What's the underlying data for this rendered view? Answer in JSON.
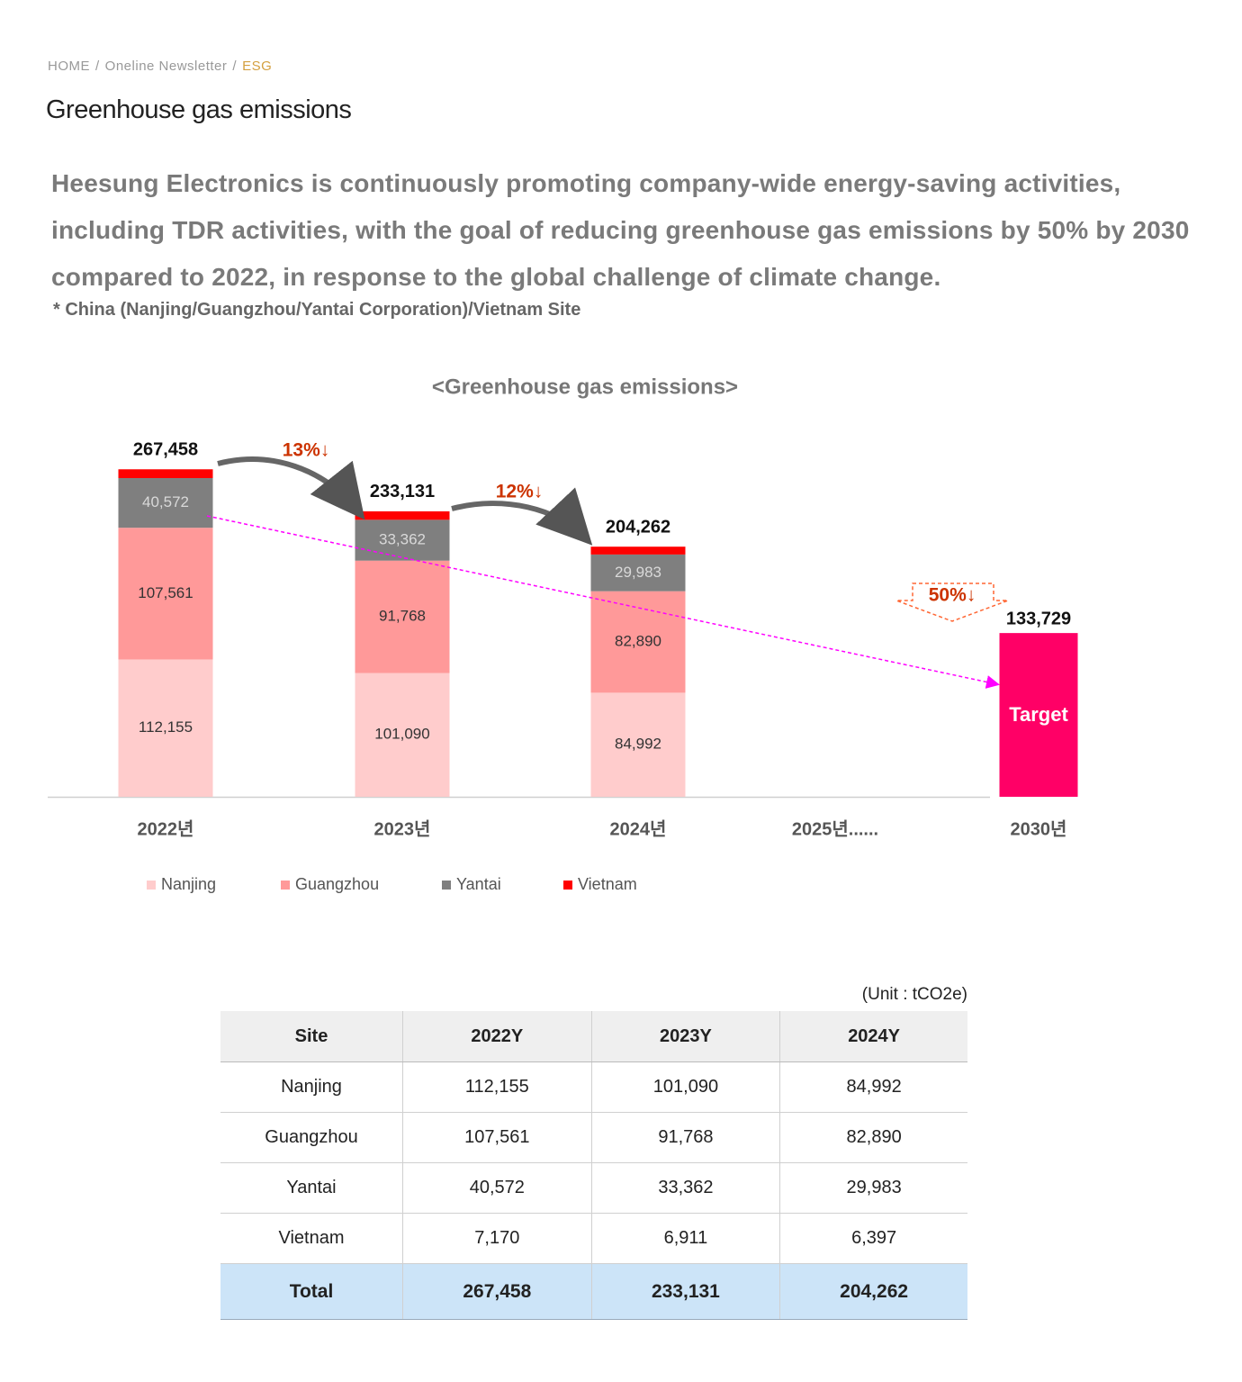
{
  "breadcrumb": {
    "items": [
      "HOME",
      "Oneline Newsletter",
      "ESG"
    ],
    "separator": "/"
  },
  "header": {
    "title": "Greenhouse gas emissions"
  },
  "intro": {
    "text": "Heesung Electronics is continuously promoting company-wide energy-saving activities, including TDR activities, with the goal of reducing greenhouse gas emissions by 50% by 2030 compared to 2022, in response to the global challenge of climate change.",
    "note": "* China (Nanjing/Guangzhou/Yantai Corporation)/Vietnam Site"
  },
  "chart_data": {
    "type": "stacked-bar",
    "title": "<Greenhouse gas emissions>",
    "categories": [
      "2022년",
      "2023년",
      "2024년",
      "2025년......",
      "2030년"
    ],
    "ylim": [
      0,
      300000
    ],
    "series": [
      {
        "name": "Nanjing",
        "color": "#ffcccc",
        "label_color": "#333333",
        "values": [
          112155,
          101090,
          84992,
          null,
          null
        ],
        "value_labels": [
          "112,155",
          "101,090",
          "84,992",
          null,
          null
        ]
      },
      {
        "name": "Guangzhou",
        "color": "#ff9999",
        "label_color": "#333333",
        "values": [
          107561,
          91768,
          82890,
          null,
          null
        ],
        "value_labels": [
          "107,561",
          "91,768",
          "82,890",
          null,
          null
        ]
      },
      {
        "name": "Yantai",
        "color": "#7f7f7f",
        "label_color": "#d9d9d9",
        "values": [
          40572,
          33362,
          29983,
          null,
          null
        ],
        "value_labels": [
          "40,572",
          "33,362",
          "29,983",
          null,
          null
        ]
      },
      {
        "name": "Vietnam",
        "color": "#ff0000",
        "values": [
          7170,
          6911,
          6397,
          null,
          null
        ]
      }
    ],
    "totals": [
      267458,
      233131,
      204262,
      null,
      null
    ],
    "total_labels": [
      "267,458",
      "233,131",
      "204,262",
      null,
      null
    ],
    "target": {
      "label": "Target",
      "value": 133729,
      "value_label": "133,729",
      "color": "#ff0066"
    },
    "annotations": [
      "13%↓",
      "12%↓",
      "50%↓"
    ],
    "annotation_color": "#cc3300"
  },
  "table": {
    "unit": "(Unit : tCO2e)",
    "header": [
      "Site",
      "2022Y",
      "2023Y",
      "2024Y"
    ],
    "rows": [
      [
        "Nanjing",
        "112,155",
        "101,090",
        "84,992"
      ],
      [
        "Guangzhou",
        "107,561",
        "91,768",
        "82,890"
      ],
      [
        "Yantai",
        "40,572",
        "33,362",
        "29,983"
      ],
      [
        "Vietnam",
        "7,170",
        "6,911",
        "6,397"
      ]
    ],
    "total": [
      "Total",
      "267,458",
      "233,131",
      "204,262"
    ]
  }
}
